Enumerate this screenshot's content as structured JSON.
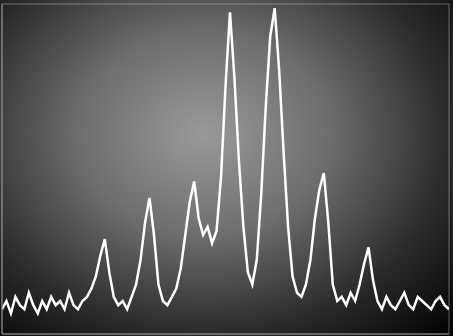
{
  "chart_data": {
    "type": "line",
    "x": [
      0,
      1,
      2,
      3,
      4,
      5,
      6,
      7,
      8,
      9,
      10,
      11,
      12,
      13,
      14,
      15,
      16,
      17,
      18,
      19,
      20,
      21,
      22,
      23,
      24,
      25,
      26,
      27,
      28,
      29,
      30,
      31,
      32,
      33,
      34,
      35,
      36,
      37,
      38,
      39,
      40,
      41,
      42,
      43,
      44,
      45,
      46,
      47,
      48,
      49,
      50,
      51,
      52,
      53,
      54,
      55,
      56,
      57,
      58,
      59,
      60,
      61,
      62,
      63,
      64,
      65,
      66,
      67,
      68,
      69,
      70,
      71,
      72,
      73,
      74,
      75,
      76,
      77,
      78,
      79,
      80,
      81,
      82,
      83,
      84,
      85,
      86,
      87,
      88,
      89,
      90,
      91,
      92,
      93,
      94,
      95,
      96,
      97,
      98,
      99,
      100
    ],
    "values": [
      6,
      8,
      5,
      9,
      7,
      6,
      10,
      7,
      5,
      8,
      6,
      9,
      7,
      8,
      6,
      10,
      7,
      6,
      8,
      9,
      11,
      14,
      19,
      23,
      15,
      9,
      7,
      8,
      6,
      9,
      12,
      18,
      27,
      33,
      24,
      12,
      8,
      7,
      9,
      11,
      16,
      24,
      32,
      37,
      28,
      24,
      26,
      22,
      25,
      38,
      60,
      78,
      62,
      42,
      26,
      15,
      12,
      18,
      34,
      55,
      72,
      79,
      64,
      44,
      26,
      14,
      10,
      9,
      12,
      18,
      28,
      35,
      39,
      27,
      12,
      8,
      9,
      7,
      10,
      8,
      12,
      17,
      21,
      13,
      8,
      6,
      9,
      7,
      6,
      8,
      10,
      7,
      6,
      9,
      8,
      7,
      6,
      8,
      9,
      7,
      6
    ],
    "color": "#ffffff",
    "xlim": [
      0,
      100
    ],
    "ylim": [
      0,
      80
    ],
    "xticks": [
      0,
      10,
      20,
      30,
      40,
      50,
      60,
      70,
      80,
      90,
      100
    ],
    "yticks": [
      0,
      10,
      20,
      30,
      40,
      50,
      60,
      70,
      80
    ],
    "grid": true,
    "tick_labels": false
  }
}
